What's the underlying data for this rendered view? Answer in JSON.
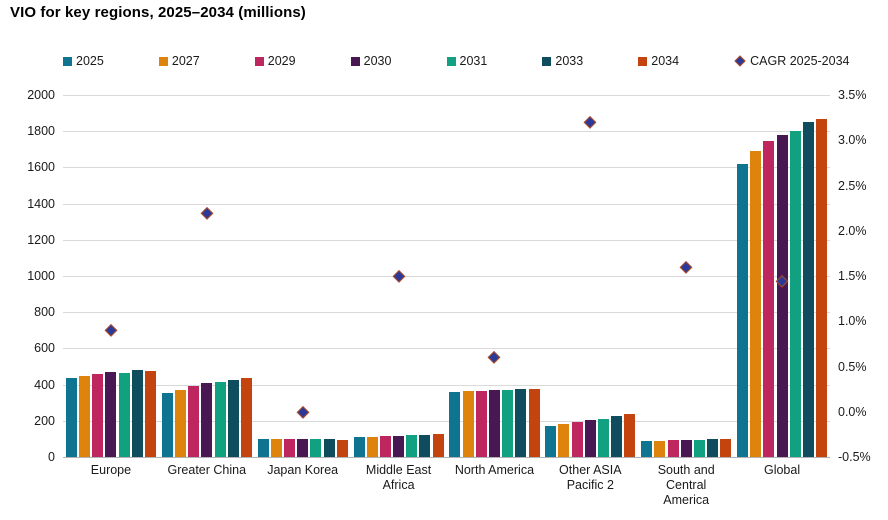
{
  "title": "VIO for key regions, 2025–2034 (millions)",
  "colors": {
    "background": "#ffffff",
    "grid": "#d9d9d9",
    "baseline": "#b3b3b3",
    "text": "#1a1a1a",
    "title_text": "#000000"
  },
  "chart_data": {
    "type": "bar",
    "secondary_type": "scatter",
    "title": "VIO for key regions, 2025–2034 (millions)",
    "grid": true,
    "legend_position": "top",
    "categories": [
      "Europe",
      "Greater China",
      "Japan Korea",
      "Middle East Africa",
      "North America",
      "Other ASIA Pacific 2",
      "South and Central America",
      "Global"
    ],
    "category_lines": [
      [
        "Europe"
      ],
      [
        "Greater China"
      ],
      [
        "Japan Korea"
      ],
      [
        "Middle East",
        "Africa"
      ],
      [
        "North America"
      ],
      [
        "Other ASIA",
        "Pacific 2"
      ],
      [
        "South and",
        "Central",
        "America"
      ],
      [
        "Global"
      ]
    ],
    "left_axis": {
      "label": "",
      "min": 0,
      "max": 2000,
      "step": 200,
      "ticks": [
        "2000",
        "1800",
        "1600",
        "1400",
        "1200",
        "1000",
        "800",
        "600",
        "400",
        "200",
        "0"
      ]
    },
    "right_axis": {
      "label": "",
      "min": -0.5,
      "max": 3.5,
      "step": 0.5,
      "ticks": [
        "3.5%",
        "3.0%",
        "2.5%",
        "2.0%",
        "1.5%",
        "1.0%",
        "0.5%",
        "0.0%",
        "-0.5%"
      ]
    },
    "series": [
      {
        "name": "2025",
        "color": "#0E7490",
        "values": [
          437,
          352,
          100,
          108,
          357,
          170,
          88,
          1620
        ]
      },
      {
        "name": "2027",
        "color": "#DF830F",
        "values": [
          448,
          370,
          102,
          111,
          363,
          181,
          90,
          1690
        ]
      },
      {
        "name": "2029",
        "color": "#BE2660",
        "values": [
          461,
          392,
          102,
          115,
          366,
          196,
          93,
          1745
        ]
      },
      {
        "name": "2030",
        "color": "#471852",
        "values": [
          468,
          407,
          101,
          117,
          371,
          204,
          93,
          1780
        ]
      },
      {
        "name": "2031",
        "color": "#12A180",
        "values": [
          466,
          416,
          101,
          121,
          370,
          210,
          94,
          1800
        ]
      },
      {
        "name": "2033",
        "color": "#0E4C5E",
        "values": [
          480,
          428,
          97,
          123,
          377,
          227,
          100,
          1850
        ]
      },
      {
        "name": "2034",
        "color": "#C4440F",
        "values": [
          477,
          434,
          95,
          126,
          376,
          235,
          100,
          1865
        ]
      }
    ],
    "scatter_series": {
      "name": "CAGR 2025-2034",
      "axis": "right",
      "marker": "diamond",
      "fill": "#2B3A99",
      "border": "#B34A1E",
      "values": [
        0.9,
        2.2,
        0.0,
        1.5,
        0.6,
        3.2,
        1.6,
        1.45
      ]
    }
  }
}
